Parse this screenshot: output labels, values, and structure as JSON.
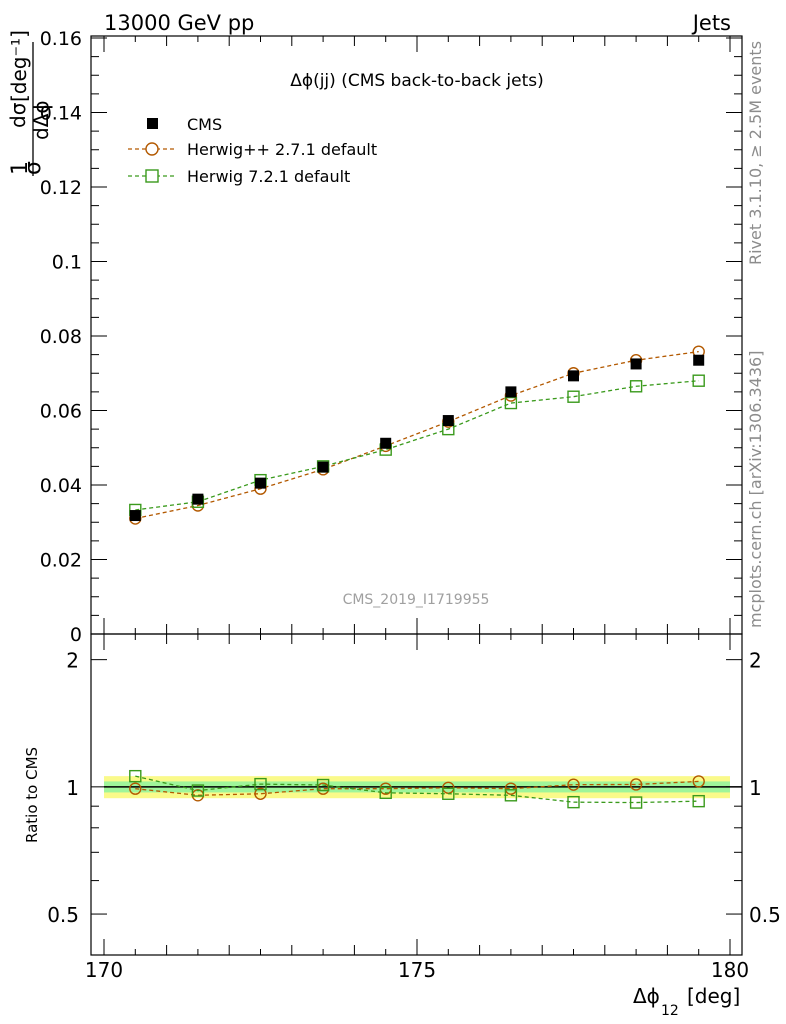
{
  "header": {
    "energy_label": "13000 GeV pp",
    "process_label": "Jets"
  },
  "side_labels": {
    "rivet": "Rivet 3.1.10, ≥ 2.5M events",
    "mcplots": "mcplots.cern.ch [arXiv:1306.3436]"
  },
  "chart_data": [
    {
      "type": "line",
      "panel": "main",
      "title": "Δϕ(jj) (CMS back-to-back jets)",
      "watermark": "CMS_2019_I1719955",
      "ylabel": "1/σ dσ/dΔϕ₁₂ [deg⁻¹]",
      "xlim": [
        170,
        180
      ],
      "ylim": [
        0,
        0.16
      ],
      "y_ticks": [
        "0",
        "0.02",
        "0.04",
        "0.06",
        "0.08",
        "0.1",
        "0.12",
        "0.14",
        "0.16"
      ],
      "legend_position": "top-left",
      "x": [
        170.5,
        171.5,
        172.5,
        173.5,
        174.5,
        175.5,
        176.5,
        177.5,
        178.5,
        179.5
      ],
      "series": [
        {
          "name": "CMS",
          "marker": "filled-square",
          "color": "#000000",
          "values": [
            0.0318,
            0.0362,
            0.0405,
            0.0448,
            0.0512,
            0.0573,
            0.065,
            0.0693,
            0.0725,
            0.0735
          ]
        },
        {
          "name": "Herwig++ 2.7.1 default",
          "marker": "open-circle",
          "color": "#b35900",
          "dashed": true,
          "values": [
            0.031,
            0.0345,
            0.039,
            0.0442,
            0.0505,
            0.057,
            0.064,
            0.07,
            0.0735,
            0.0758
          ]
        },
        {
          "name": "Herwig 7.2.1 default",
          "marker": "open-square",
          "color": "#3a9a1c",
          "dashed": true,
          "values": [
            0.0333,
            0.0355,
            0.0413,
            0.045,
            0.0495,
            0.055,
            0.062,
            0.0637,
            0.0665,
            0.068
          ]
        }
      ]
    },
    {
      "type": "line",
      "panel": "ratio",
      "ylabel": "Ratio to CMS",
      "xlabel": "Δϕ12 [deg]",
      "xlim": [
        170,
        180
      ],
      "ylim": [
        0.4,
        2.3
      ],
      "x_ticks": [
        "170",
        "175",
        "180"
      ],
      "y_ticks": [
        "0.5",
        "1",
        "2"
      ],
      "x": [
        170.5,
        171.5,
        172.5,
        173.5,
        174.5,
        175.5,
        176.5,
        177.5,
        178.5,
        179.5
      ],
      "band": {
        "inner": 0.03,
        "outer": 0.06,
        "inner_color": "#9ff59a",
        "outer_color": "#fafa8a"
      },
      "series": [
        {
          "name": "Herwig++ 2.7.1 default",
          "marker": "open-circle",
          "color": "#b35900",
          "dashed": true,
          "values": [
            0.99,
            0.955,
            0.963,
            0.99,
            0.99,
            0.995,
            0.99,
            1.012,
            1.013,
            1.03
          ]
        },
        {
          "name": "Herwig 7.2.1 default",
          "marker": "open-square",
          "color": "#3a9a1c",
          "dashed": true,
          "values": [
            1.06,
            0.98,
            1.015,
            1.01,
            0.968,
            0.963,
            0.955,
            0.92,
            0.918,
            0.925
          ]
        }
      ]
    }
  ]
}
